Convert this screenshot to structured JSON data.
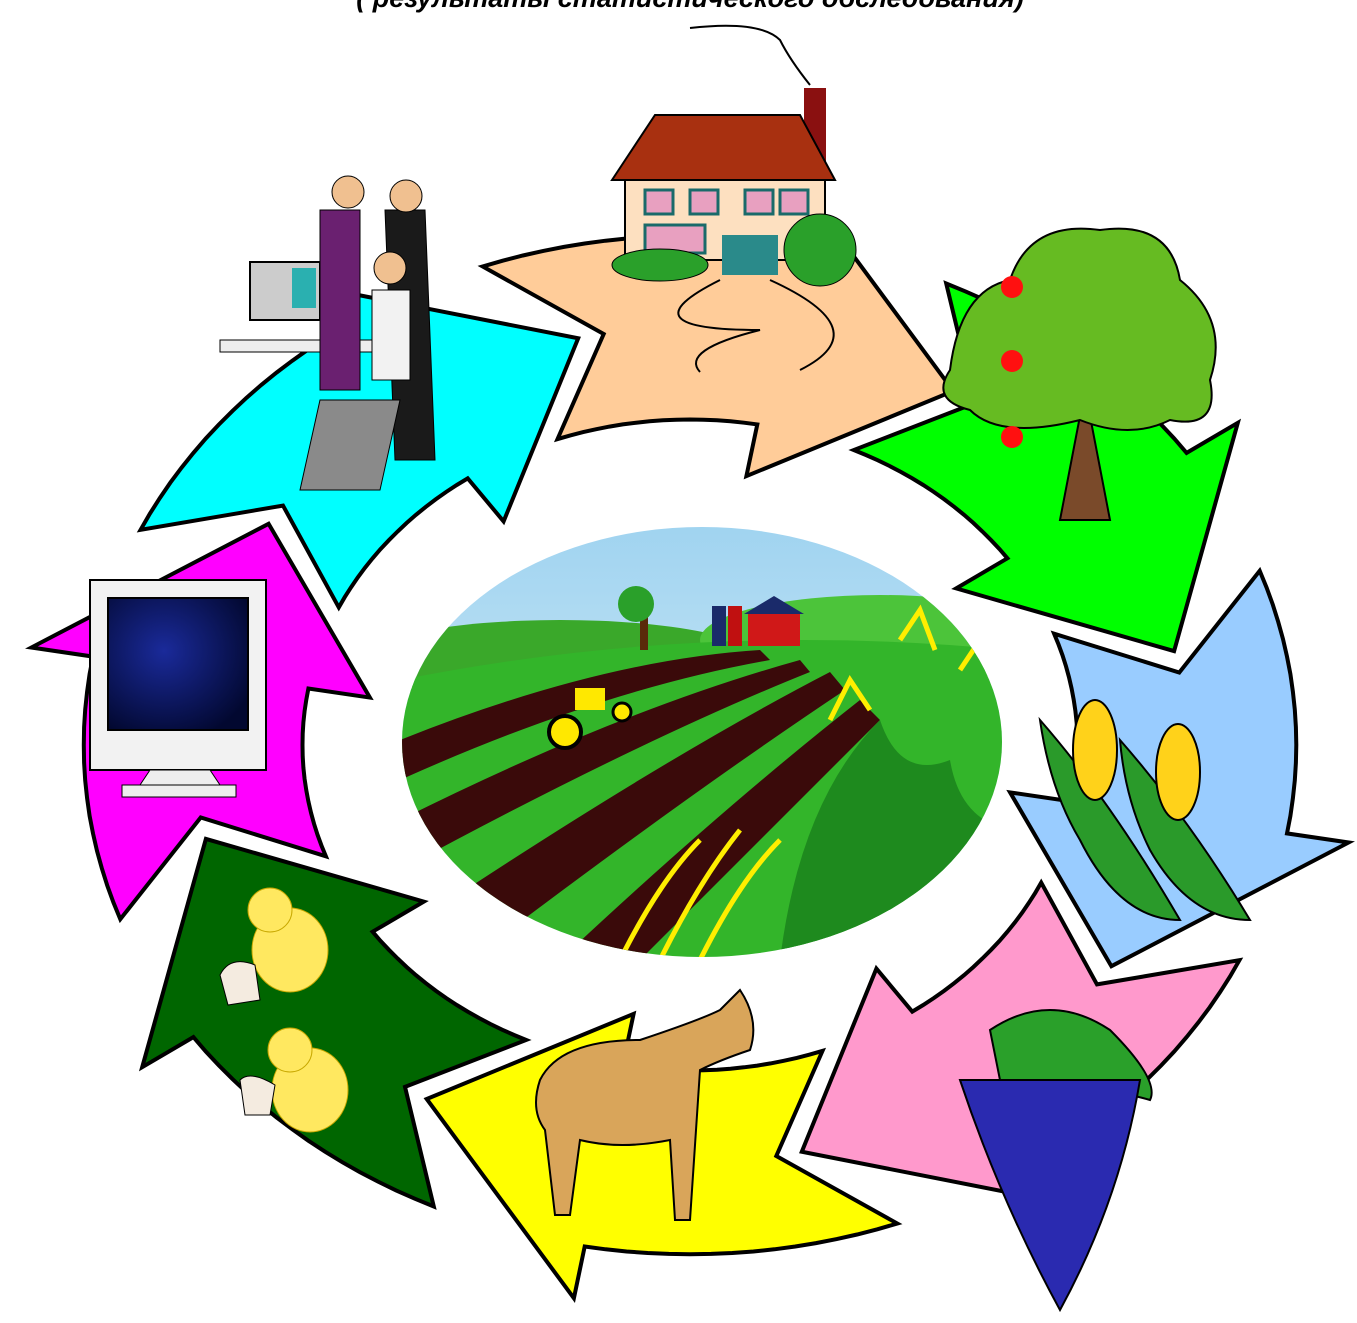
{
  "title": "( результаты статистического обследования)"
}
